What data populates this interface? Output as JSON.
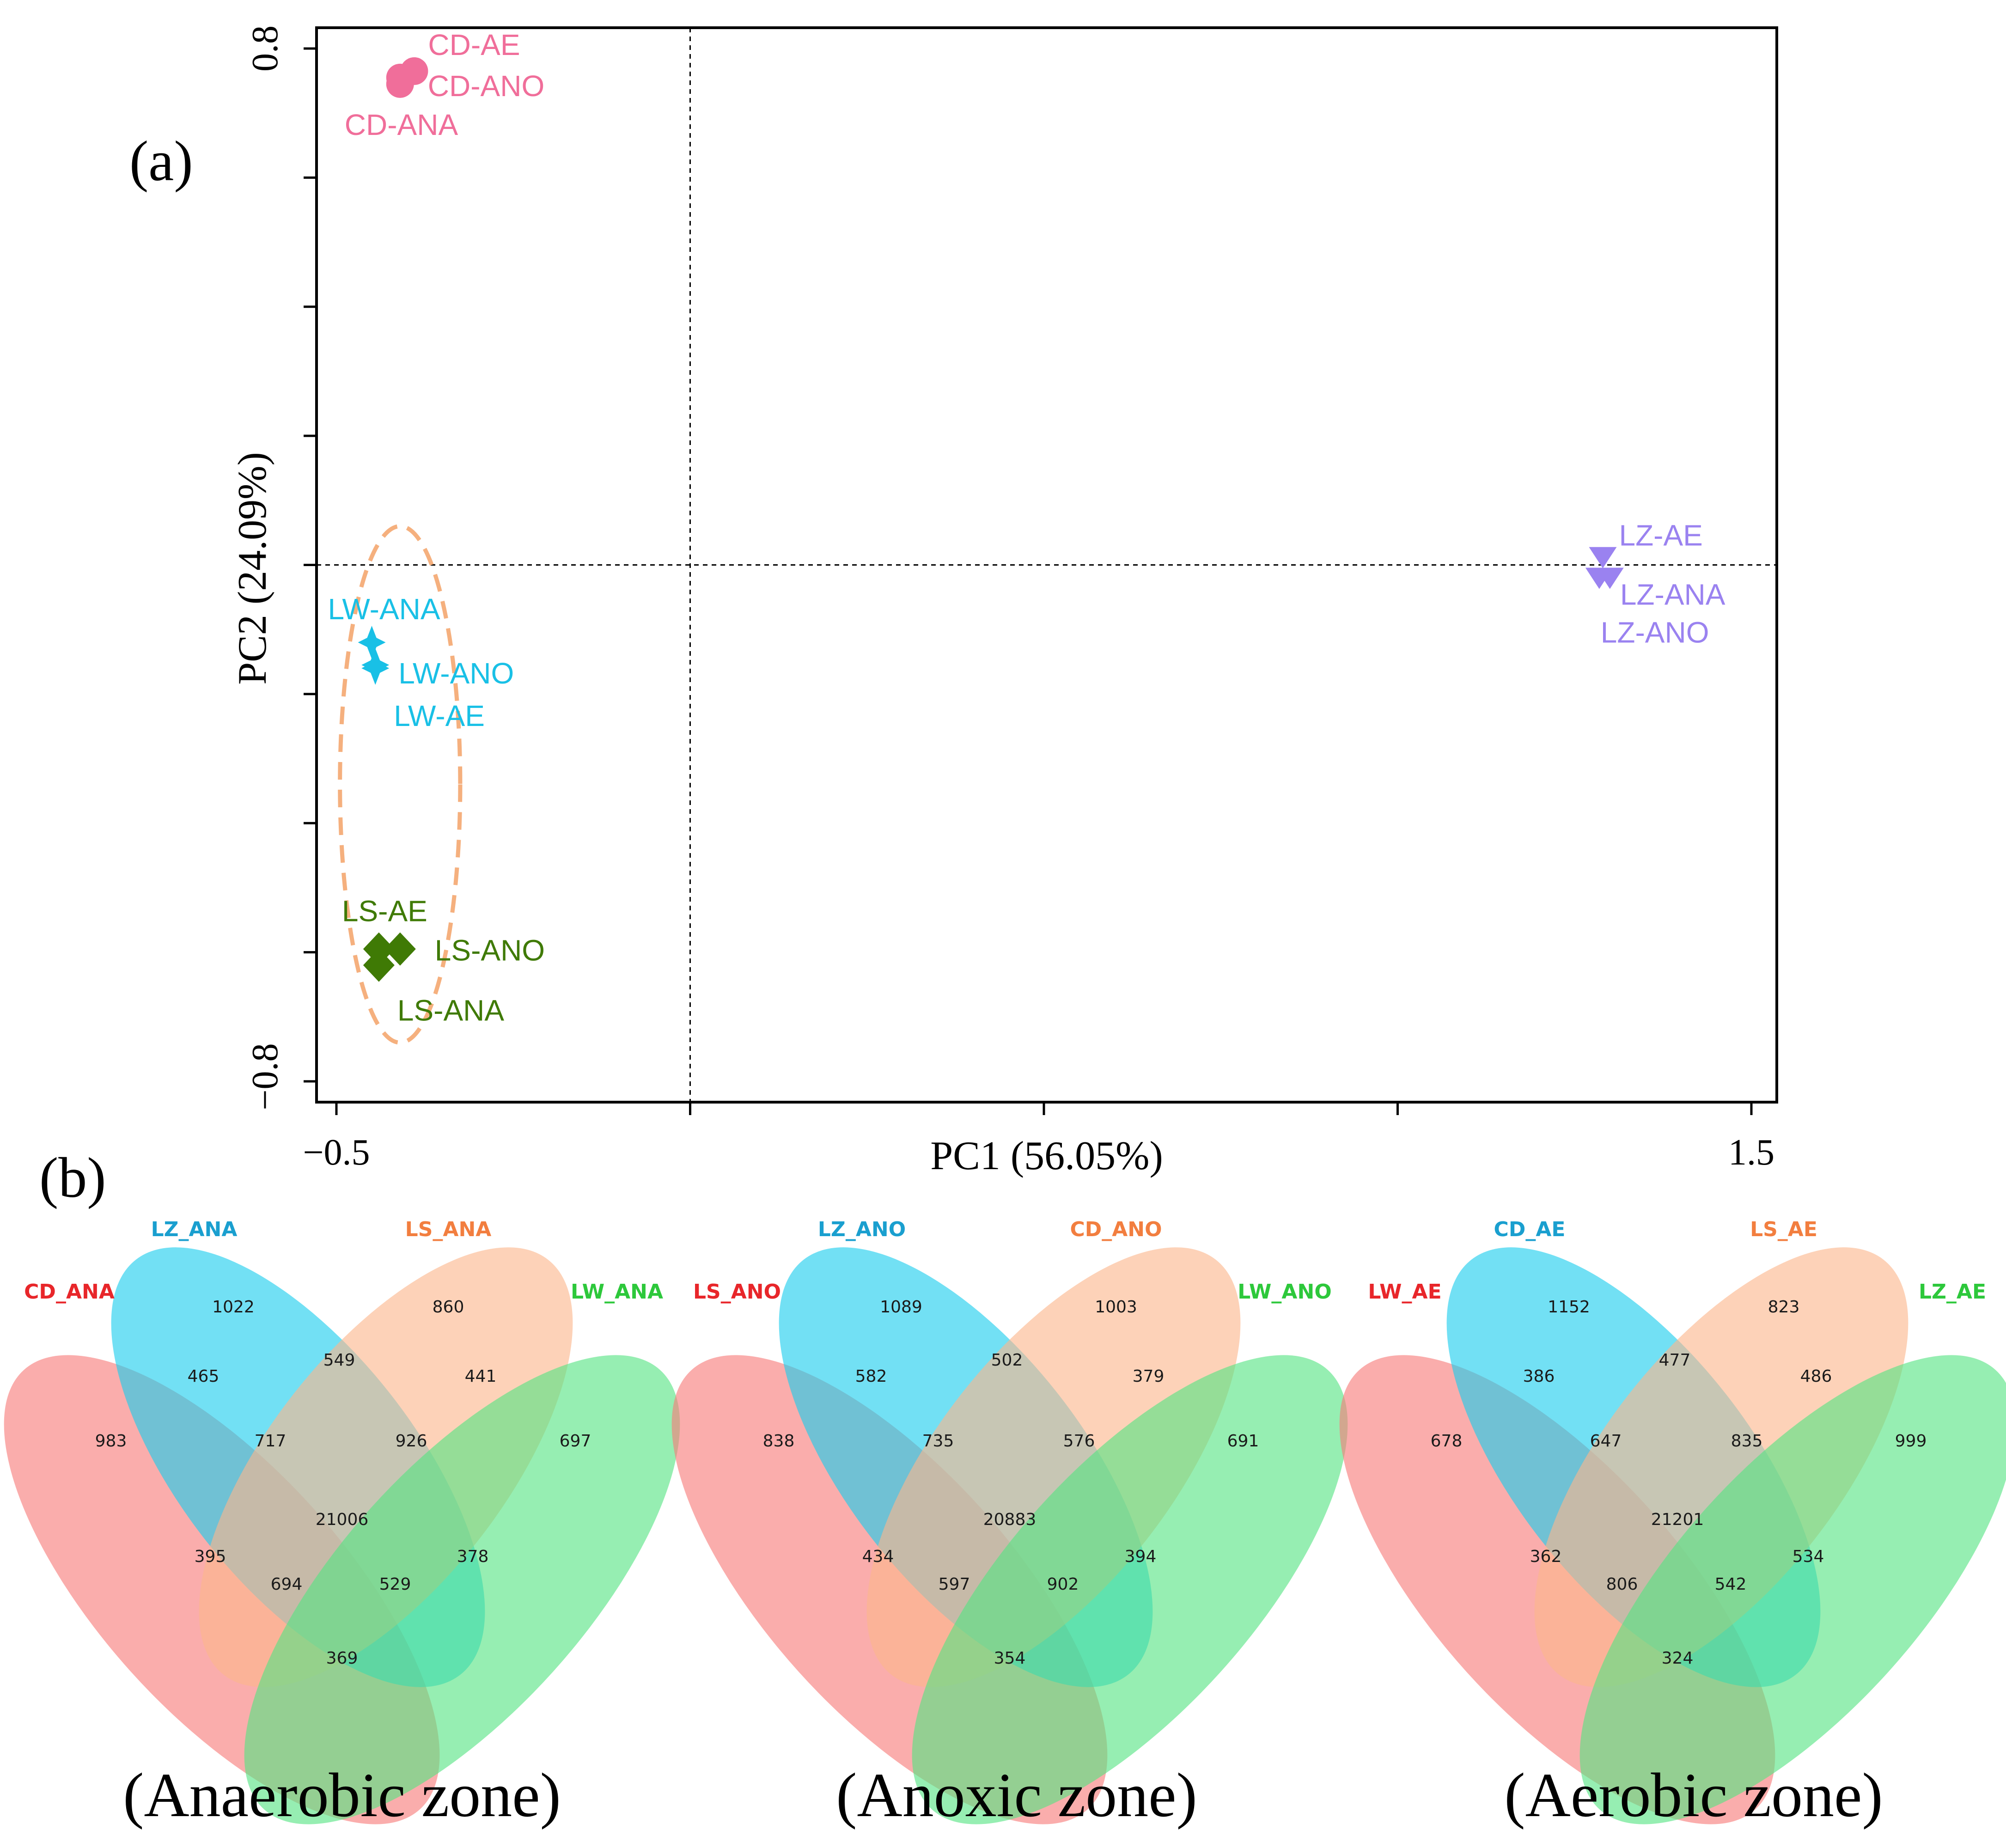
{
  "chart_data": [
    {
      "type": "scatter",
      "panel_label": "(a)",
      "xlabel": "PC1 (56.05%)",
      "ylabel": "PC2 (24.09%)",
      "xlim": [
        -0.52,
        1.52
      ],
      "ylim": [
        -0.82,
        0.84
      ],
      "xticks": [
        -0.5,
        0,
        0.5,
        1.0,
        1.5
      ],
      "xtick_labels": [
        "-0.5",
        "",
        "",
        "",
        "1.5"
      ],
      "yticks": [
        -0.8,
        -0.6,
        -0.4,
        -0.2,
        0,
        0.2,
        0.4,
        0.6,
        0.8
      ],
      "ytick_labels": [
        "-0.8",
        "",
        "",
        "",
        "",
        "",
        "",
        "",
        "0.8"
      ],
      "reference_lines": {
        "x": 0,
        "y": 0
      },
      "series": [
        {
          "name": "CD",
          "color": "#f06e9a",
          "marker": "circle",
          "points": [
            {
              "label": "CD-AE",
              "x": -0.39,
              "y": 0.765
            },
            {
              "label": "CD-ANO",
              "x": -0.41,
              "y": 0.755
            },
            {
              "label": "CD-ANA",
              "x": -0.41,
              "y": 0.745
            }
          ]
        },
        {
          "name": "LW",
          "color": "#19c0e6",
          "marker": "star",
          "points": [
            {
              "label": "LW-ANA",
              "x": -0.45,
              "y": -0.12
            },
            {
              "label": "LW-ANO",
              "x": -0.445,
              "y": -0.155
            },
            {
              "label": "LW-AE",
              "x": -0.445,
              "y": -0.16
            }
          ]
        },
        {
          "name": "LS",
          "color": "#3f7a05",
          "marker": "diamond",
          "points": [
            {
              "label": "LS-AE",
              "x": -0.44,
              "y": -0.595
            },
            {
              "label": "LS-ANO",
              "x": -0.41,
              "y": -0.595
            },
            {
              "label": "LS-ANA",
              "x": -0.44,
              "y": -0.62
            }
          ]
        },
        {
          "name": "LZ",
          "color": "#9a82f0",
          "marker": "triangle-down",
          "points": [
            {
              "label": "LZ-AE",
              "x": 1.29,
              "y": 0.012
            },
            {
              "label": "LZ-ANA",
              "x": 1.285,
              "y": -0.02
            },
            {
              "label": "LZ-ANO",
              "x": 1.3,
              "y": -0.02
            }
          ]
        }
      ],
      "ellipse": {
        "center": [
          -0.41,
          -0.34
        ],
        "rx": 0.085,
        "ry": 0.4,
        "color": "#f5b07e",
        "style": "dashed"
      }
    },
    {
      "type": "venn",
      "panel_label": "(b)",
      "caption": "(Anaerobic zone)",
      "sets": [
        "CD_ANA",
        "LZ_ANA",
        "LS_ANA",
        "LW_ANA"
      ],
      "regions": {
        "A": 983,
        "B": 1022,
        "C": 860,
        "D": 697,
        "AB": 465,
        "BC": 549,
        "CD": 441,
        "AC": 395,
        "BD": 378,
        "AD": 369,
        "ABC": 717,
        "BCD": 926,
        "ACD": 694,
        "ABD": 529,
        "ABCD": 21006
      }
    },
    {
      "type": "venn",
      "caption": "(Anoxic zone)",
      "sets": [
        "LS_ANO",
        "LZ_ANO",
        "CD_ANO",
        "LW_ANO"
      ],
      "regions": {
        "A": 838,
        "B": 1089,
        "C": 1003,
        "D": 691,
        "AB": 582,
        "BC": 502,
        "CD": 379,
        "AC": 434,
        "BD": 394,
        "AD": 354,
        "ABC": 735,
        "BCD": 576,
        "ACD": 597,
        "ABD": 902,
        "ABCD": 20883
      }
    },
    {
      "type": "venn",
      "caption": "(Aerobic zone)",
      "sets": [
        "LW_AE",
        "CD_AE",
        "LS_AE",
        "LZ_AE"
      ],
      "regions": {
        "A": 678,
        "B": 1152,
        "C": 823,
        "D": 999,
        "AB": 386,
        "BC": 477,
        "CD": 486,
        "AC": 362,
        "BD": 534,
        "AD": 324,
        "ABC": 647,
        "BCD": 835,
        "ACD": 806,
        "ABD": 542,
        "ABCD": 21201
      }
    }
  ],
  "venn_colors": [
    "#f77a79",
    "#1ccdee",
    "#fbb68c",
    "#55e383"
  ],
  "venn_label_colors": [
    "#e8262a",
    "#1a9fcf",
    "#f27e3f",
    "#2dc83b"
  ]
}
